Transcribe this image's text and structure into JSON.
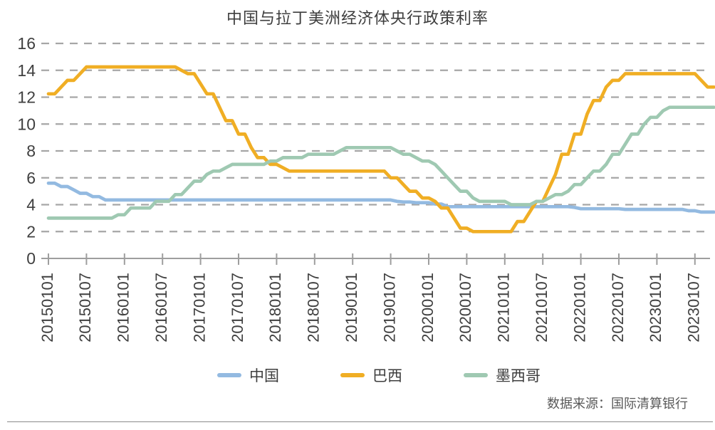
{
  "source_note": "数据来源：国际清算银行",
  "chart_data": {
    "type": "line",
    "title": "中国与拉丁美洲经济体央行政策利率",
    "xlabel": "",
    "ylabel": "",
    "ylim": [
      0,
      16
    ],
    "y_ticks": [
      0,
      2,
      4,
      6,
      8,
      10,
      12,
      14,
      16
    ],
    "grid": "dashed horizontal",
    "legend_position": "bottom center",
    "x_unit": "monthly observations, Jan 2015 - Oct 2023",
    "x_tick_labels": [
      "20150101",
      "20150107",
      "20160101",
      "20160107",
      "20170101",
      "20170107",
      "20180101",
      "20180107",
      "20190101",
      "20190107",
      "20200101",
      "20200107",
      "20210101",
      "20210107",
      "20220101",
      "20220107",
      "20230101",
      "20230107"
    ],
    "x_ticks_every_n_points": 6,
    "grid_color": "#a6a6a6",
    "axis_color": "#9e9e9e",
    "tick_label_color": "#3f3f3f",
    "series": [
      {
        "name": "中国",
        "color": "#93bae1",
        "values": [
          5.6,
          5.6,
          5.35,
          5.35,
          5.1,
          4.85,
          4.85,
          4.6,
          4.6,
          4.35,
          4.35,
          4.35,
          4.35,
          4.35,
          4.35,
          4.35,
          4.35,
          4.35,
          4.35,
          4.35,
          4.35,
          4.35,
          4.35,
          4.35,
          4.35,
          4.35,
          4.35,
          4.35,
          4.35,
          4.35,
          4.35,
          4.35,
          4.35,
          4.35,
          4.35,
          4.35,
          4.35,
          4.35,
          4.35,
          4.35,
          4.35,
          4.35,
          4.35,
          4.35,
          4.35,
          4.35,
          4.35,
          4.35,
          4.35,
          4.35,
          4.35,
          4.35,
          4.35,
          4.35,
          4.35,
          4.25,
          4.2,
          4.2,
          4.15,
          4.15,
          4.15,
          4.05,
          4.05,
          3.85,
          3.85,
          3.85,
          3.85,
          3.85,
          3.85,
          3.85,
          3.85,
          3.85,
          3.85,
          3.85,
          3.85,
          3.85,
          3.85,
          3.85,
          3.85,
          3.85,
          3.85,
          3.85,
          3.85,
          3.8,
          3.7,
          3.7,
          3.7,
          3.7,
          3.7,
          3.7,
          3.7,
          3.65,
          3.65,
          3.65,
          3.65,
          3.65,
          3.65,
          3.65,
          3.65,
          3.65,
          3.65,
          3.55,
          3.55,
          3.45,
          3.45,
          3.45
        ]
      },
      {
        "name": "巴西",
        "color": "#f0ae24",
        "values": [
          12.25,
          12.25,
          12.75,
          13.25,
          13.25,
          13.75,
          14.25,
          14.25,
          14.25,
          14.25,
          14.25,
          14.25,
          14.25,
          14.25,
          14.25,
          14.25,
          14.25,
          14.25,
          14.25,
          14.25,
          14.25,
          14.0,
          13.75,
          13.75,
          13.0,
          12.25,
          12.25,
          11.25,
          10.25,
          10.25,
          9.25,
          9.25,
          8.25,
          7.5,
          7.5,
          7.0,
          7.0,
          6.75,
          6.5,
          6.5,
          6.5,
          6.5,
          6.5,
          6.5,
          6.5,
          6.5,
          6.5,
          6.5,
          6.5,
          6.5,
          6.5,
          6.5,
          6.5,
          6.5,
          6.0,
          6.0,
          5.5,
          5.0,
          5.0,
          4.5,
          4.5,
          4.25,
          3.75,
          3.75,
          3.0,
          2.25,
          2.25,
          2.0,
          2.0,
          2.0,
          2.0,
          2.0,
          2.0,
          2.0,
          2.75,
          2.75,
          3.5,
          4.25,
          4.25,
          5.25,
          6.25,
          7.75,
          7.75,
          9.25,
          9.25,
          10.75,
          11.75,
          11.75,
          12.75,
          13.25,
          13.25,
          13.75,
          13.75,
          13.75,
          13.75,
          13.75,
          13.75,
          13.75,
          13.75,
          13.75,
          13.75,
          13.75,
          13.75,
          13.25,
          12.75,
          12.75
        ]
      },
      {
        "name": "墨西哥",
        "color": "#9fc9b2",
        "values": [
          3.0,
          3.0,
          3.0,
          3.0,
          3.0,
          3.0,
          3.0,
          3.0,
          3.0,
          3.0,
          3.0,
          3.25,
          3.25,
          3.75,
          3.75,
          3.75,
          3.75,
          4.25,
          4.25,
          4.25,
          4.75,
          4.75,
          5.25,
          5.75,
          5.75,
          6.25,
          6.5,
          6.5,
          6.75,
          7.0,
          7.0,
          7.0,
          7.0,
          7.0,
          7.0,
          7.25,
          7.25,
          7.5,
          7.5,
          7.5,
          7.5,
          7.75,
          7.75,
          7.75,
          7.75,
          7.75,
          8.0,
          8.25,
          8.25,
          8.25,
          8.25,
          8.25,
          8.25,
          8.25,
          8.25,
          8.0,
          7.75,
          7.75,
          7.5,
          7.25,
          7.25,
          7.0,
          6.5,
          6.0,
          5.5,
          5.0,
          5.0,
          4.5,
          4.25,
          4.25,
          4.25,
          4.25,
          4.25,
          4.0,
          4.0,
          4.0,
          4.0,
          4.25,
          4.25,
          4.5,
          4.75,
          4.75,
          5.0,
          5.5,
          5.5,
          6.0,
          6.5,
          6.5,
          7.0,
          7.75,
          7.75,
          8.5,
          9.25,
          9.25,
          10.0,
          10.5,
          10.5,
          11.0,
          11.25,
          11.25,
          11.25,
          11.25,
          11.25,
          11.25,
          11.25,
          11.25
        ]
      }
    ]
  }
}
